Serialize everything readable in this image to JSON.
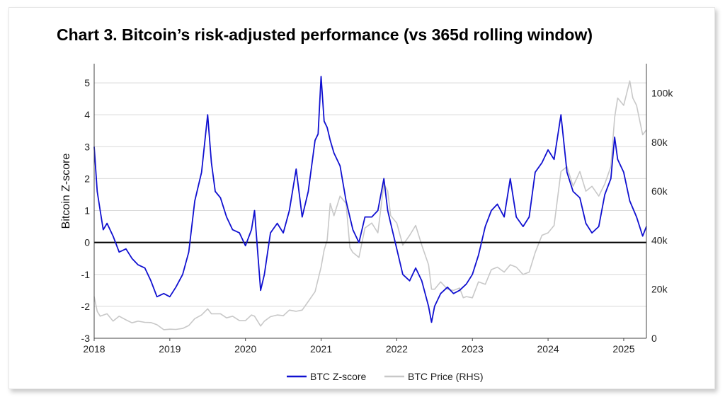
{
  "chart_data": {
    "type": "line",
    "title": "Chart 3. Bitcoin’s risk-adjusted performance (vs 365d rolling window)",
    "ylabel": "Bitcoin Z-score",
    "y2label": "",
    "xlabel": "",
    "x_ticks": [
      "2018",
      "2019",
      "2020",
      "2021",
      "2022",
      "2023",
      "2024",
      "2025"
    ],
    "y_ticks": [
      "-3",
      "-2",
      "-1",
      "0",
      "1",
      "2",
      "3",
      "4",
      "5"
    ],
    "y2_ticks": [
      "0",
      "20k",
      "40k",
      "60k",
      "80k",
      "100k"
    ],
    "xlim": [
      2018.0,
      2025.3
    ],
    "ylim": [
      -3,
      5.6
    ],
    "y2lim": [
      0,
      112000
    ],
    "grid": true,
    "legend_position": "bottom-center",
    "series": [
      {
        "name": "BTC Z-score",
        "axis": "left",
        "color": "#1010d0",
        "points": [
          [
            2018.0,
            3.0
          ],
          [
            2018.04,
            1.6
          ],
          [
            2018.08,
            1.0
          ],
          [
            2018.12,
            0.4
          ],
          [
            2018.17,
            0.6
          ],
          [
            2018.25,
            0.2
          ],
          [
            2018.33,
            -0.3
          ],
          [
            2018.42,
            -0.2
          ],
          [
            2018.5,
            -0.5
          ],
          [
            2018.58,
            -0.7
          ],
          [
            2018.67,
            -0.8
          ],
          [
            2018.75,
            -1.2
          ],
          [
            2018.83,
            -1.7
          ],
          [
            2018.92,
            -1.6
          ],
          [
            2019.0,
            -1.7
          ],
          [
            2019.08,
            -1.4
          ],
          [
            2019.17,
            -1.0
          ],
          [
            2019.25,
            -0.3
          ],
          [
            2019.33,
            1.3
          ],
          [
            2019.42,
            2.2
          ],
          [
            2019.5,
            4.0
          ],
          [
            2019.55,
            2.5
          ],
          [
            2019.6,
            1.6
          ],
          [
            2019.67,
            1.4
          ],
          [
            2019.75,
            0.8
          ],
          [
            2019.83,
            0.4
          ],
          [
            2019.92,
            0.3
          ],
          [
            2020.0,
            -0.1
          ],
          [
            2020.08,
            0.4
          ],
          [
            2020.12,
            1.0
          ],
          [
            2020.2,
            -1.5
          ],
          [
            2020.25,
            -1.0
          ],
          [
            2020.33,
            0.3
          ],
          [
            2020.42,
            0.6
          ],
          [
            2020.5,
            0.3
          ],
          [
            2020.58,
            1.0
          ],
          [
            2020.67,
            2.3
          ],
          [
            2020.75,
            0.8
          ],
          [
            2020.83,
            1.6
          ],
          [
            2020.92,
            3.2
          ],
          [
            2020.96,
            3.4
          ],
          [
            2021.0,
            5.2
          ],
          [
            2021.04,
            3.8
          ],
          [
            2021.08,
            3.6
          ],
          [
            2021.12,
            3.2
          ],
          [
            2021.17,
            2.8
          ],
          [
            2021.25,
            2.4
          ],
          [
            2021.33,
            1.3
          ],
          [
            2021.42,
            0.4
          ],
          [
            2021.5,
            0.0
          ],
          [
            2021.58,
            0.8
          ],
          [
            2021.67,
            0.8
          ],
          [
            2021.75,
            1.0
          ],
          [
            2021.83,
            2.0
          ],
          [
            2021.88,
            1.0
          ],
          [
            2021.92,
            0.6
          ],
          [
            2022.0,
            -0.2
          ],
          [
            2022.08,
            -1.0
          ],
          [
            2022.17,
            -1.2
          ],
          [
            2022.25,
            -0.8
          ],
          [
            2022.33,
            -1.2
          ],
          [
            2022.42,
            -2.0
          ],
          [
            2022.46,
            -2.5
          ],
          [
            2022.5,
            -2.0
          ],
          [
            2022.58,
            -1.6
          ],
          [
            2022.67,
            -1.4
          ],
          [
            2022.75,
            -1.6
          ],
          [
            2022.83,
            -1.5
          ],
          [
            2022.92,
            -1.3
          ],
          [
            2023.0,
            -1.0
          ],
          [
            2023.08,
            -0.4
          ],
          [
            2023.17,
            0.5
          ],
          [
            2023.25,
            1.0
          ],
          [
            2023.33,
            1.2
          ],
          [
            2023.42,
            0.8
          ],
          [
            2023.5,
            2.0
          ],
          [
            2023.58,
            0.8
          ],
          [
            2023.67,
            0.5
          ],
          [
            2023.75,
            0.8
          ],
          [
            2023.83,
            2.2
          ],
          [
            2023.92,
            2.5
          ],
          [
            2024.0,
            2.9
          ],
          [
            2024.08,
            2.6
          ],
          [
            2024.17,
            4.0
          ],
          [
            2024.25,
            2.2
          ],
          [
            2024.33,
            1.6
          ],
          [
            2024.42,
            1.4
          ],
          [
            2024.5,
            0.6
          ],
          [
            2024.58,
            0.3
          ],
          [
            2024.67,
            0.5
          ],
          [
            2024.75,
            1.5
          ],
          [
            2024.83,
            2.0
          ],
          [
            2024.88,
            3.3
          ],
          [
            2024.92,
            2.6
          ],
          [
            2025.0,
            2.2
          ],
          [
            2025.08,
            1.3
          ],
          [
            2025.17,
            0.8
          ],
          [
            2025.25,
            0.2
          ],
          [
            2025.3,
            0.5
          ]
        ]
      },
      {
        "name": "BTC Price (RHS)",
        "axis": "right",
        "color": "#c8c8c8",
        "points": [
          [
            2018.0,
            17000
          ],
          [
            2018.04,
            11000
          ],
          [
            2018.08,
            9000
          ],
          [
            2018.17,
            10000
          ],
          [
            2018.25,
            7000
          ],
          [
            2018.33,
            9000
          ],
          [
            2018.42,
            7500
          ],
          [
            2018.5,
            6300
          ],
          [
            2018.58,
            7000
          ],
          [
            2018.67,
            6500
          ],
          [
            2018.75,
            6400
          ],
          [
            2018.83,
            5500
          ],
          [
            2018.92,
            3500
          ],
          [
            2019.0,
            3700
          ],
          [
            2019.08,
            3600
          ],
          [
            2019.17,
            4000
          ],
          [
            2019.25,
            5200
          ],
          [
            2019.33,
            8000
          ],
          [
            2019.42,
            9500
          ],
          [
            2019.5,
            12000
          ],
          [
            2019.55,
            10000
          ],
          [
            2019.67,
            10000
          ],
          [
            2019.75,
            8300
          ],
          [
            2019.83,
            9000
          ],
          [
            2019.92,
            7200
          ],
          [
            2020.0,
            7200
          ],
          [
            2020.08,
            9500
          ],
          [
            2020.12,
            9000
          ],
          [
            2020.2,
            5000
          ],
          [
            2020.25,
            7000
          ],
          [
            2020.33,
            8800
          ],
          [
            2020.42,
            9500
          ],
          [
            2020.5,
            9200
          ],
          [
            2020.58,
            11500
          ],
          [
            2020.67,
            11000
          ],
          [
            2020.75,
            11500
          ],
          [
            2020.83,
            15000
          ],
          [
            2020.92,
            19000
          ],
          [
            2021.0,
            29000
          ],
          [
            2021.04,
            36000
          ],
          [
            2021.08,
            40000
          ],
          [
            2021.12,
            55000
          ],
          [
            2021.17,
            50000
          ],
          [
            2021.25,
            58000
          ],
          [
            2021.33,
            55000
          ],
          [
            2021.38,
            37000
          ],
          [
            2021.42,
            35000
          ],
          [
            2021.5,
            33000
          ],
          [
            2021.58,
            45000
          ],
          [
            2021.67,
            47000
          ],
          [
            2021.75,
            43000
          ],
          [
            2021.83,
            63000
          ],
          [
            2021.88,
            60000
          ],
          [
            2021.92,
            50000
          ],
          [
            2022.0,
            47000
          ],
          [
            2022.08,
            38000
          ],
          [
            2022.17,
            42000
          ],
          [
            2022.25,
            46000
          ],
          [
            2022.33,
            38000
          ],
          [
            2022.42,
            30000
          ],
          [
            2022.46,
            20000
          ],
          [
            2022.5,
            20000
          ],
          [
            2022.58,
            23000
          ],
          [
            2022.67,
            20000
          ],
          [
            2022.75,
            19500
          ],
          [
            2022.83,
            20500
          ],
          [
            2022.88,
            16500
          ],
          [
            2022.92,
            17000
          ],
          [
            2023.0,
            16500
          ],
          [
            2023.08,
            23000
          ],
          [
            2023.17,
            22000
          ],
          [
            2023.25,
            28000
          ],
          [
            2023.33,
            29000
          ],
          [
            2023.42,
            27000
          ],
          [
            2023.5,
            30000
          ],
          [
            2023.58,
            29000
          ],
          [
            2023.67,
            26000
          ],
          [
            2023.75,
            27000
          ],
          [
            2023.83,
            35000
          ],
          [
            2023.92,
            42000
          ],
          [
            2024.0,
            43000
          ],
          [
            2024.08,
            46000
          ],
          [
            2024.17,
            68000
          ],
          [
            2024.25,
            70000
          ],
          [
            2024.33,
            62000
          ],
          [
            2024.42,
            68000
          ],
          [
            2024.5,
            60000
          ],
          [
            2024.58,
            62000
          ],
          [
            2024.67,
            58000
          ],
          [
            2024.75,
            63000
          ],
          [
            2024.83,
            70000
          ],
          [
            2024.88,
            90000
          ],
          [
            2024.92,
            98000
          ],
          [
            2025.0,
            95000
          ],
          [
            2025.08,
            105000
          ],
          [
            2025.12,
            98000
          ],
          [
            2025.17,
            95000
          ],
          [
            2025.25,
            83000
          ],
          [
            2025.3,
            85000
          ]
        ]
      }
    ]
  }
}
